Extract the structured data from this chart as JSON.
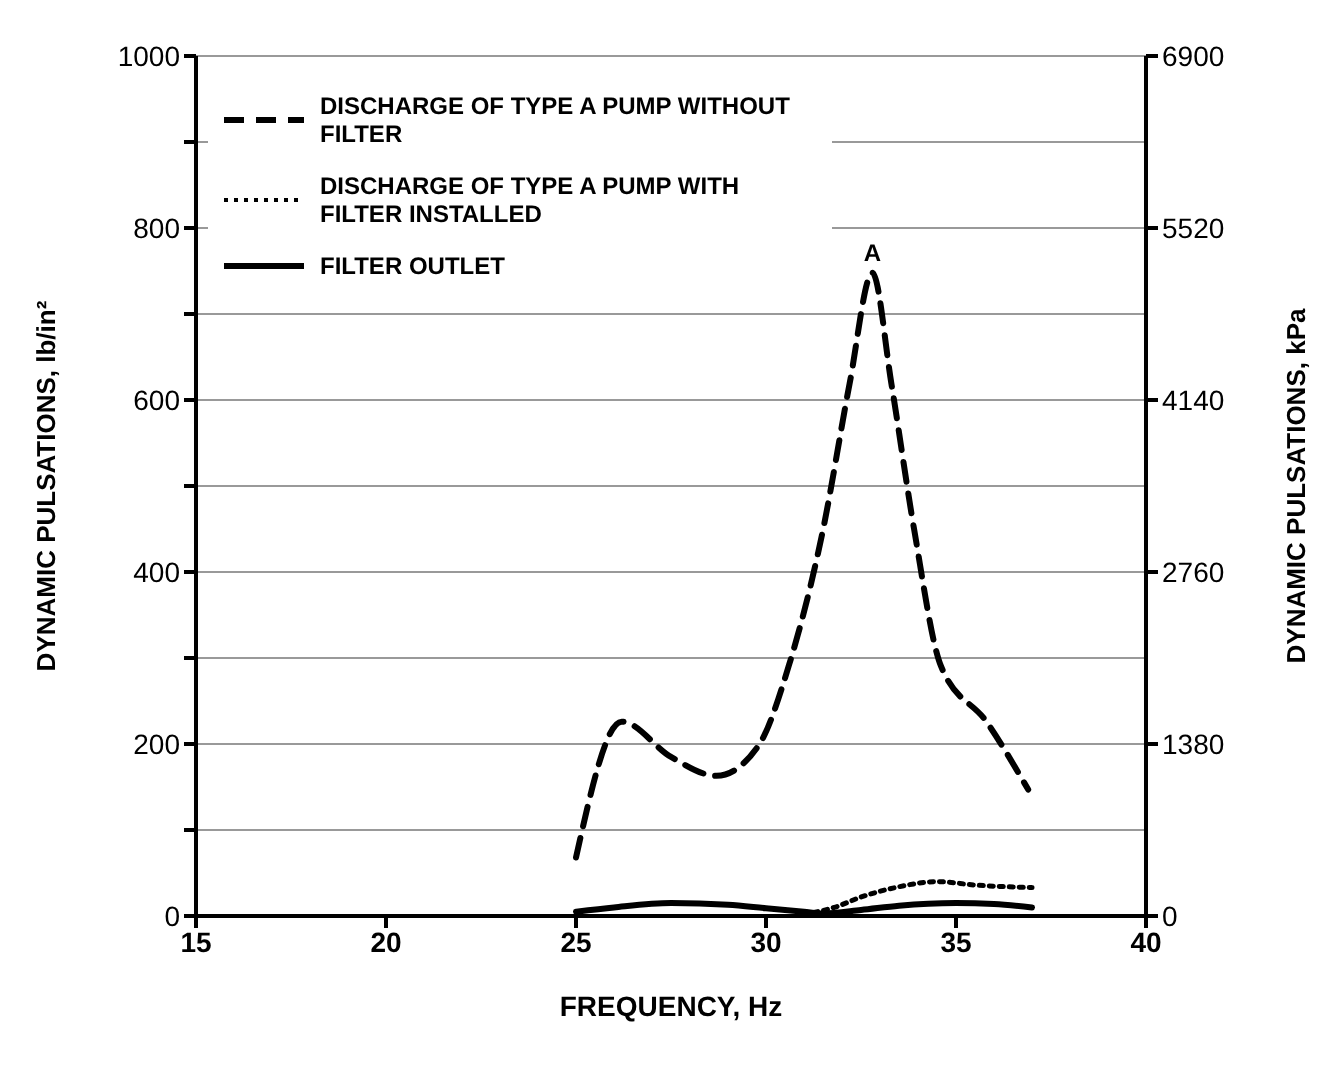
{
  "chart_data": {
    "type": "line",
    "xlabel": "FREQUENCY, Hz",
    "ylabel": "DYNAMIC PULSATIONS, lb/in²",
    "y2label": "DYNAMIC PULSATIONS, kPa",
    "xlim": [
      15,
      40
    ],
    "xticks": [
      15,
      20,
      25,
      30,
      35,
      40
    ],
    "ylim": [
      0,
      1000
    ],
    "yticks": [
      0,
      {
        "value": 100,
        "label": null
      },
      200,
      {
        "value": 300,
        "label": null
      },
      400,
      {
        "value": 500,
        "label": null
      },
      600,
      {
        "value": 700,
        "label": null
      },
      800,
      {
        "value": 900,
        "label": null
      },
      1000
    ],
    "y2lim": [
      0,
      6900
    ],
    "y2ticks": [
      0,
      1380,
      2760,
      4140,
      5520,
      6900
    ],
    "grid": "y",
    "legend": "top left",
    "marker": "none",
    "series": [
      {
        "name": "DISCHARGE OF TYPE A PUMP WITHOUT FILTER",
        "color": "#000000",
        "line_style": "dashed",
        "x": [
          25,
          26.2,
          27.5,
          28.7,
          29.8,
          30.6,
          31.5,
          32.2,
          32.8,
          33.3,
          33.9,
          34.6,
          35.8,
          36.9
        ],
        "values": [
          68,
          226,
          185,
          163,
          198,
          291,
          449,
          619,
          748,
          619,
          449,
          291,
          226,
          147
        ]
      },
      {
        "name": "DISCHARGE OF TYPE A PUMP WITH FILTER INSTALLED",
        "color": "#000000",
        "line_style": "dotted",
        "x": [
          31,
          31.8,
          32.5,
          33.5,
          34.5,
          35.5,
          37
        ],
        "values": [
          2,
          10,
          22,
          34,
          40,
          36,
          33
        ]
      },
      {
        "name": "FILTER OUTLET",
        "color": "#000000",
        "line_style": "solid",
        "x": [
          25,
          26,
          27.5,
          29,
          30,
          31,
          31.5,
          32.5,
          33.5,
          35,
          36,
          37
        ],
        "values": [
          5,
          10,
          15,
          13,
          9,
          5,
          3,
          7,
          12,
          15,
          14,
          10
        ]
      }
    ],
    "annotations": [
      {
        "text": "A",
        "x": 32.8,
        "y": 748
      }
    ]
  }
}
